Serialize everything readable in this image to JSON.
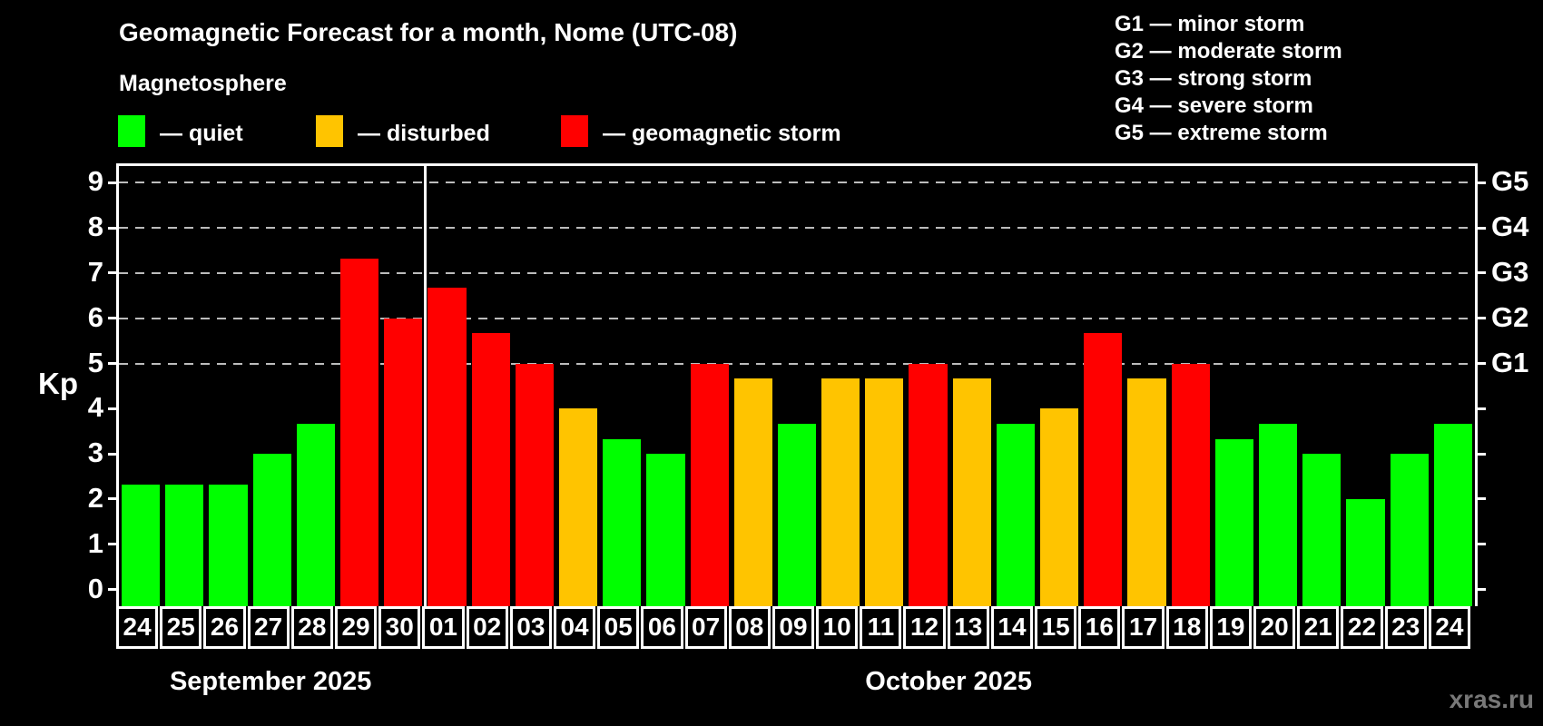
{
  "watermark": "xras.ru",
  "chart_data": {
    "type": "bar",
    "title": "Geomagnetic Forecast for a month, Nome (UTC-08)",
    "subtitle": "Magnetosphere",
    "ylabel": "Kp",
    "ylim": [
      0,
      9
    ],
    "yticks": [
      0,
      1,
      2,
      3,
      4,
      5,
      6,
      7,
      8,
      9
    ],
    "grid": "dashed horizontal gridlines at Kp 5-9 only",
    "gridlines_at_kp": [
      5,
      6,
      7,
      8,
      9
    ],
    "legend": {
      "position": "top-left",
      "items": [
        {
          "key": "quiet",
          "label": "— quiet",
          "color": "#00ff00"
        },
        {
          "key": "disturbed",
          "label": "— disturbed",
          "color": "#ffc400"
        },
        {
          "key": "storm",
          "label": "— geomagnetic storm",
          "color": "#ff0000"
        }
      ]
    },
    "storm_scale_legend": {
      "position": "top-right",
      "lines": [
        "G1 — minor storm",
        "G2 — moderate storm",
        "G3 — strong storm",
        "G4 — severe storm",
        "G5 — extreme storm"
      ]
    },
    "right_axis_labels": [
      {
        "kp": 5,
        "label": "G1"
      },
      {
        "kp": 6,
        "label": "G2"
      },
      {
        "kp": 7,
        "label": "G3"
      },
      {
        "kp": 8,
        "label": "G4"
      },
      {
        "kp": 9,
        "label": "G5"
      }
    ],
    "months": [
      {
        "label": "September 2025",
        "days": 7
      },
      {
        "label": "October 2025",
        "days": 24
      }
    ],
    "categories": [
      "24",
      "25",
      "26",
      "27",
      "28",
      "29",
      "30",
      "01",
      "02",
      "03",
      "04",
      "05",
      "06",
      "07",
      "08",
      "09",
      "10",
      "11",
      "12",
      "13",
      "14",
      "15",
      "16",
      "17",
      "18",
      "19",
      "20",
      "21",
      "22",
      "23",
      "24"
    ],
    "bars": [
      {
        "date": "24",
        "month": "September",
        "kp": 2.33,
        "level": "quiet"
      },
      {
        "date": "25",
        "month": "September",
        "kp": 2.33,
        "level": "quiet"
      },
      {
        "date": "26",
        "month": "September",
        "kp": 2.33,
        "level": "quiet"
      },
      {
        "date": "27",
        "month": "September",
        "kp": 3.0,
        "level": "quiet"
      },
      {
        "date": "28",
        "month": "September",
        "kp": 3.67,
        "level": "quiet"
      },
      {
        "date": "29",
        "month": "September",
        "kp": 7.33,
        "level": "storm"
      },
      {
        "date": "30",
        "month": "September",
        "kp": 6.0,
        "level": "storm"
      },
      {
        "date": "01",
        "month": "October",
        "kp": 6.67,
        "level": "storm"
      },
      {
        "date": "02",
        "month": "October",
        "kp": 5.67,
        "level": "storm"
      },
      {
        "date": "03",
        "month": "October",
        "kp": 5.0,
        "level": "storm"
      },
      {
        "date": "04",
        "month": "October",
        "kp": 4.0,
        "level": "disturbed"
      },
      {
        "date": "05",
        "month": "October",
        "kp": 3.33,
        "level": "quiet"
      },
      {
        "date": "06",
        "month": "October",
        "kp": 3.0,
        "level": "quiet"
      },
      {
        "date": "07",
        "month": "October",
        "kp": 5.0,
        "level": "storm"
      },
      {
        "date": "08",
        "month": "October",
        "kp": 4.67,
        "level": "disturbed"
      },
      {
        "date": "09",
        "month": "October",
        "kp": 3.67,
        "level": "quiet"
      },
      {
        "date": "10",
        "month": "October",
        "kp": 4.67,
        "level": "disturbed"
      },
      {
        "date": "11",
        "month": "October",
        "kp": 4.67,
        "level": "disturbed"
      },
      {
        "date": "12",
        "month": "October",
        "kp": 5.0,
        "level": "storm"
      },
      {
        "date": "13",
        "month": "October",
        "kp": 4.67,
        "level": "disturbed"
      },
      {
        "date": "14",
        "month": "October",
        "kp": 3.67,
        "level": "quiet"
      },
      {
        "date": "15",
        "month": "October",
        "kp": 4.0,
        "level": "disturbed"
      },
      {
        "date": "16",
        "month": "October",
        "kp": 5.67,
        "level": "storm"
      },
      {
        "date": "17",
        "month": "October",
        "kp": 4.67,
        "level": "disturbed"
      },
      {
        "date": "18",
        "month": "October",
        "kp": 5.0,
        "level": "storm"
      },
      {
        "date": "19",
        "month": "October",
        "kp": 3.33,
        "level": "quiet"
      },
      {
        "date": "20",
        "month": "October",
        "kp": 3.67,
        "level": "quiet"
      },
      {
        "date": "21",
        "month": "October",
        "kp": 3.0,
        "level": "quiet"
      },
      {
        "date": "22",
        "month": "October",
        "kp": 2.0,
        "level": "quiet"
      },
      {
        "date": "23",
        "month": "October",
        "kp": 3.0,
        "level": "quiet"
      },
      {
        "date": "24",
        "month": "October",
        "kp": 3.67,
        "level": "quiet"
      }
    ]
  }
}
